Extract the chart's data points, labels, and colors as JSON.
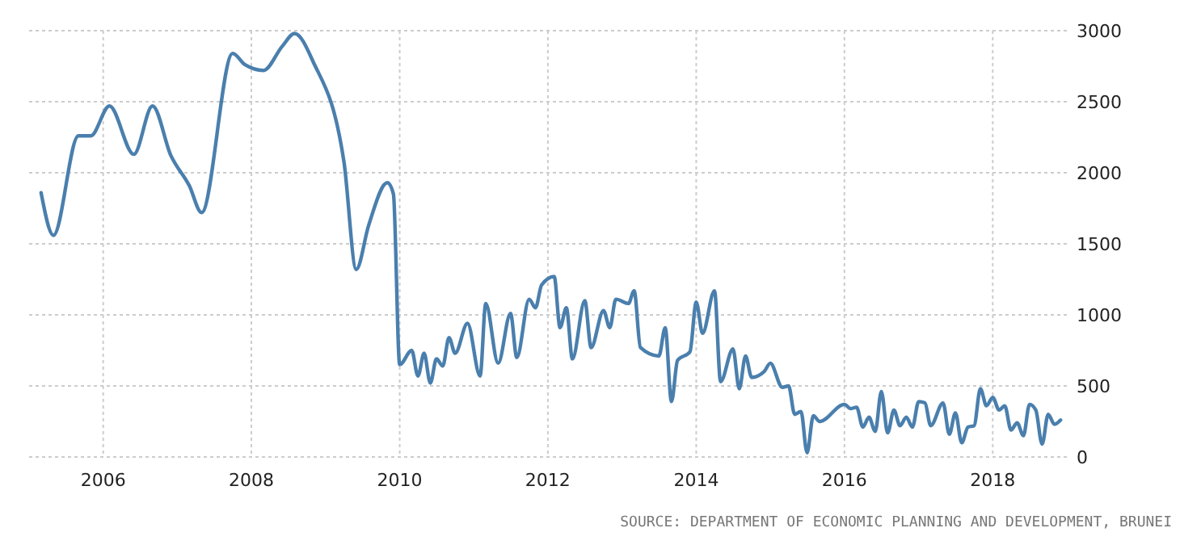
{
  "chart_data": {
    "type": "line",
    "x": [
      "2005-03",
      "2005-05",
      "2005-09",
      "2005-11",
      "2006-02",
      "2006-06",
      "2006-09",
      "2006-12",
      "2007-03",
      "2007-05",
      "2007-10",
      "2007-12",
      "2008-03",
      "2008-06",
      "2008-08",
      "2008-11",
      "2009-04",
      "2009-06",
      "2009-08",
      "2009-11",
      "2009-12",
      "2010-01",
      "2010-03",
      "2010-04",
      "2010-05",
      "2010-06",
      "2010-07",
      "2010-08",
      "2010-09",
      "2010-10",
      "2010-12",
      "2011-02",
      "2011-03",
      "2011-05",
      "2011-07",
      "2011-08",
      "2011-10",
      "2011-11",
      "2011-12",
      "2012-02",
      "2012-03",
      "2012-04",
      "2012-05",
      "2012-07",
      "2012-08",
      "2012-10",
      "2012-11",
      "2012-12",
      "2013-02",
      "2013-03",
      "2013-04",
      "2013-07",
      "2013-08",
      "2013-09",
      "2013-10",
      "2013-12",
      "2014-01",
      "2014-02",
      "2014-04",
      "2014-05",
      "2014-07",
      "2014-08",
      "2014-09",
      "2014-10",
      "2014-12",
      "2015-01",
      "2015-03",
      "2015-04",
      "2015-05",
      "2015-06",
      "2015-07",
      "2015-08",
      "2015-09",
      "2016-01",
      "2016-02",
      "2016-03",
      "2016-04",
      "2016-05",
      "2016-06",
      "2016-07",
      "2016-08",
      "2016-09",
      "2016-10",
      "2016-11",
      "2016-12",
      "2017-01",
      "2017-02",
      "2017-03",
      "2017-05",
      "2017-06",
      "2017-07",
      "2017-08",
      "2017-09",
      "2017-10",
      "2017-11",
      "2017-12",
      "2018-01",
      "2018-02",
      "2018-03",
      "2018-04",
      "2018-05",
      "2018-06",
      "2018-07",
      "2018-08",
      "2018-09",
      "2018-10",
      "2018-11",
      "2018-12"
    ],
    "series": [
      {
        "color": "#4a7fad",
        "values": [
          1860,
          1560,
          2260,
          2260,
          2470,
          2130,
          2470,
          2120,
          1910,
          1720,
          2840,
          2760,
          2720,
          2890,
          2980,
          2780,
          2080,
          1320,
          1630,
          1930,
          1850,
          650,
          750,
          570,
          730,
          520,
          690,
          640,
          840,
          730,
          940,
          570,
          1080,
          660,
          1010,
          700,
          1110,
          1050,
          1210,
          1270,
          910,
          1050,
          690,
          1100,
          770,
          1030,
          910,
          1110,
          1080,
          1170,
          770,
          710,
          910,
          390,
          680,
          740,
          1090,
          870,
          1170,
          530,
          760,
          480,
          710,
          560,
          600,
          660,
          490,
          500,
          300,
          320,
          30,
          290,
          250,
          370,
          340,
          350,
          210,
          280,
          180,
          460,
          170,
          330,
          220,
          280,
          210,
          390,
          380,
          220,
          380,
          160,
          310,
          100,
          210,
          220,
          480,
          360,
          420,
          330,
          360,
          190,
          240,
          150,
          370,
          330,
          90,
          300,
          230,
          260
        ]
      }
    ],
    "xlim": [
      "2005-01",
      "2019-01"
    ],
    "xticks": [
      "2006",
      "2008",
      "2010",
      "2012",
      "2014",
      "2016",
      "2018"
    ],
    "ylim": [
      0,
      3000
    ],
    "yticks": [
      0,
      500,
      1000,
      1500,
      2000,
      2500,
      3000
    ],
    "grid": true,
    "marker": "none",
    "line_style": "solid",
    "annotations": [
      "SOURCE: DEPARTMENT OF ECONOMIC PLANNING AND DEVELOPMENT, BRUNEI"
    ]
  }
}
